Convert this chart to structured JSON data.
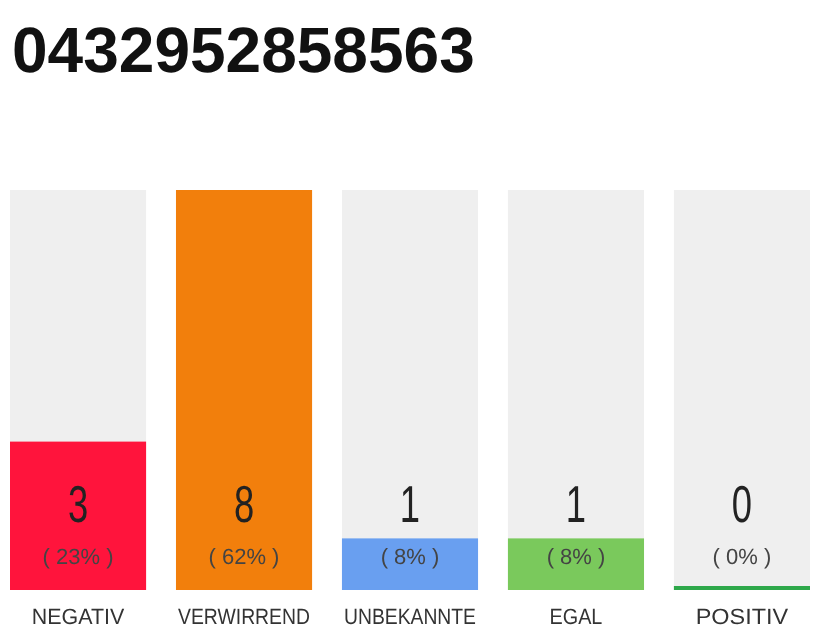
{
  "chart_data": {
    "type": "bar",
    "title": "0432952858563",
    "categories": [
      "NEGATIV",
      "VERWIRREND",
      "UNBEKANNTE",
      "EGAL",
      "POSITIV"
    ],
    "values": [
      23,
      62,
      8,
      8,
      0
    ],
    "colors": [
      "#ff143c",
      "#f27f0c",
      "#699ff0",
      "#7ac95c",
      "#2ea84a"
    ],
    "value_labels": [
      "( 23% )",
      "( 62% )",
      "( 8% )",
      "( 8% )",
      "( 0% )"
    ],
    "annotations": [
      "3",
      "8",
      "1",
      "1",
      "0"
    ]
  }
}
